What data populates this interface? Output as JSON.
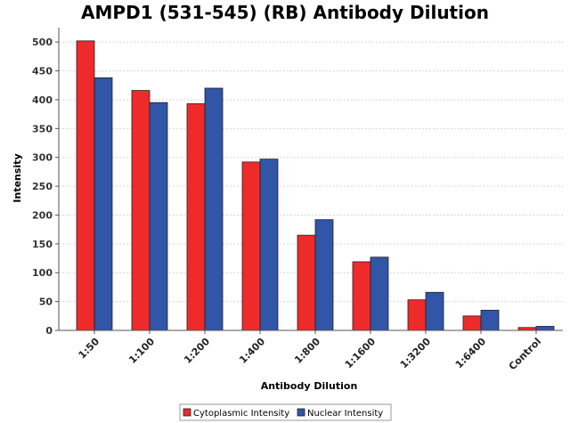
{
  "chart_data": {
    "type": "bar",
    "title": "AMPD1 (531-545) (RB) Antibody Dilution",
    "xlabel": "Antibody Dilution",
    "ylabel": "Intensity",
    "ylim": [
      0,
      525
    ],
    "yticks": [
      0,
      50,
      100,
      150,
      200,
      250,
      300,
      350,
      400,
      450,
      500
    ],
    "grid": "horizontal dashed",
    "legend_position": "bottom-center",
    "categories": [
      "1:50",
      "1:100",
      "1:200",
      "1:400",
      "1:800",
      "1:1600",
      "1:3200",
      "1:6400",
      "Control"
    ],
    "series": [
      {
        "name": "Cytoplasmic Intensity",
        "color": "#ee2a2a",
        "values": [
          502,
          416,
          393,
          292,
          165,
          119,
          53,
          25,
          5
        ]
      },
      {
        "name": "Nuclear Intensity",
        "color": "#3155a7",
        "values": [
          438,
          395,
          420,
          297,
          192,
          127,
          66,
          35,
          7
        ]
      }
    ]
  }
}
